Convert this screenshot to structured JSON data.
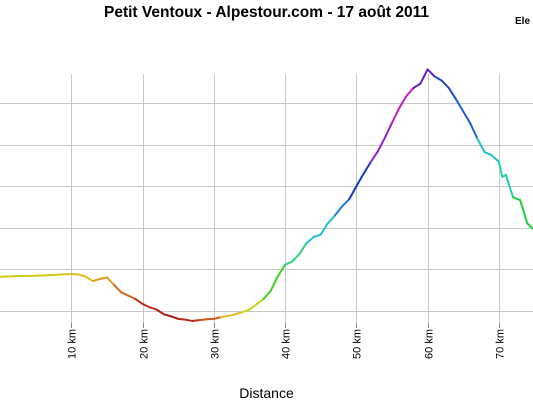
{
  "chart_data": {
    "type": "line",
    "title": "Petit Ventoux - Alpestour.com - 17 août 2011",
    "legend_label": "Ele",
    "legend_position": "top-right",
    "xlabel": "Distance",
    "ylabel": "",
    "grid": true,
    "xlim": [
      0,
      74.8
    ],
    "ylim": [
      0,
      60
    ],
    "x_tick_labels": [
      "10 km",
      "20 km",
      "30 km",
      "40 km",
      "50 km",
      "60 km",
      "70 km"
    ],
    "x_tick_values": [
      10,
      20,
      30,
      40,
      50,
      60,
      70
    ],
    "y_gridlines": [
      3,
      13,
      23,
      33,
      43,
      53
    ],
    "gradient_colors": [
      "#d4c81a",
      "#d9c01c",
      "#e0a01e",
      "#d06a1a",
      "#c03018",
      "#b01818",
      "#b82818",
      "#d85818",
      "#e8b81a",
      "#c8d81a",
      "#40d020",
      "#30d080",
      "#20c0d0",
      "#2080d0",
      "#1838c0",
      "#9020c8",
      "#c020c0",
      "#6020c0",
      "#2048c8",
      "#2060d0",
      "#20c0d0",
      "#20d0b0",
      "#20d040"
    ],
    "x": [
      0,
      2,
      5,
      10,
      11,
      12,
      13,
      14,
      15,
      16,
      17,
      18,
      19,
      20,
      21,
      22,
      23,
      24,
      25,
      26,
      27,
      28,
      29,
      30,
      31,
      32,
      33,
      34,
      35,
      36,
      37,
      38,
      39,
      40,
      41,
      42,
      43,
      44,
      45,
      46,
      47,
      48,
      49,
      50,
      51,
      52,
      53,
      54,
      55,
      56,
      57,
      58,
      59,
      60,
      61,
      62,
      63,
      64,
      65,
      66,
      67,
      68,
      69,
      70,
      70.5,
      71,
      72,
      73,
      74,
      74.8
    ],
    "y": [
      11.1,
      11.3,
      11.4,
      11.8,
      11.7,
      11.2,
      10.1,
      10.6,
      11.0,
      9.2,
      7.4,
      6.6,
      5.8,
      4.6,
      3.8,
      3.2,
      2.1,
      1.6,
      1.0,
      0.8,
      0.5,
      0.7,
      0.9,
      1.0,
      1.4,
      1.7,
      2.1,
      2.6,
      3.2,
      4.5,
      5.8,
      7.8,
      11.3,
      14.0,
      14.8,
      16.6,
      19.2,
      20.7,
      21.3,
      24.0,
      25.9,
      28.1,
      29.8,
      32.9,
      35.9,
      38.7,
      41.3,
      44.6,
      48.2,
      51.7,
      54.6,
      56.6,
      57.7,
      61.1,
      59.4,
      58.4,
      56.6,
      53.9,
      51.0,
      48.1,
      44.4,
      41.2,
      40.4,
      38.9,
      35.2,
      35.7,
      30.3,
      29.6,
      24.0,
      22.7
    ]
  }
}
